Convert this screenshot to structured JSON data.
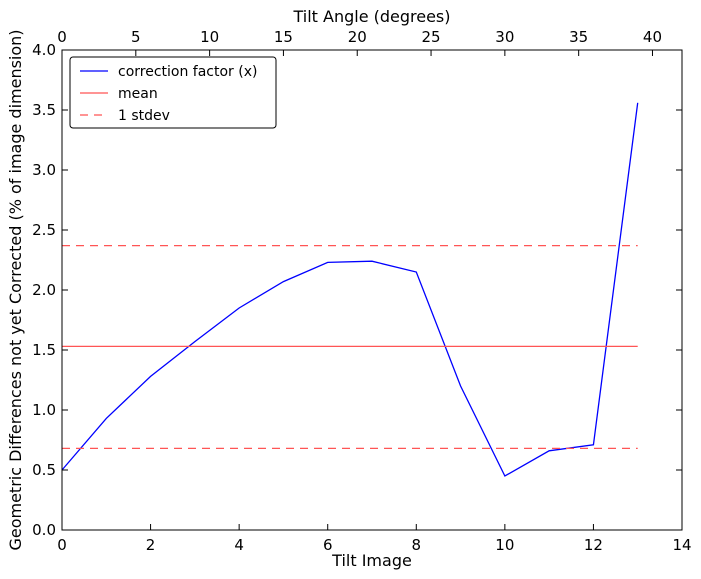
{
  "chart_data": {
    "type": "line",
    "title": "",
    "xlabel": "Tilt Image",
    "ylabel": "Geometric Differences not yet Corrected (% of image dimension)",
    "x2label": "Tilt Angle (degrees)",
    "xlim": [
      0,
      14
    ],
    "ylim": [
      0,
      4.0
    ],
    "x2lim": [
      0,
      42
    ],
    "xticks": [
      0,
      2,
      4,
      6,
      8,
      10,
      12,
      14
    ],
    "yticks": [
      0.0,
      0.5,
      1.0,
      1.5,
      2.0,
      2.5,
      3.0,
      3.5,
      4.0
    ],
    "x2ticks": [
      0,
      5,
      10,
      15,
      20,
      25,
      30,
      35,
      40
    ],
    "xtick_labels": [
      "0",
      "2",
      "4",
      "6",
      "8",
      "10",
      "12",
      "14"
    ],
    "ytick_labels": [
      "0.0",
      "0.5",
      "1.0",
      "1.5",
      "2.0",
      "2.5",
      "3.0",
      "3.5",
      "4.0"
    ],
    "x2tick_labels": [
      "0",
      "5",
      "10",
      "15",
      "20",
      "25",
      "30",
      "35",
      "40"
    ],
    "grid": false,
    "legend_position": "top-left",
    "series": [
      {
        "name": "correction factor (x)",
        "color": "#0000ff",
        "style": "solid",
        "x": [
          0,
          1,
          2,
          3,
          4,
          5,
          6,
          7,
          8,
          9,
          10,
          11,
          12,
          13
        ],
        "y": [
          0.5,
          0.93,
          1.28,
          1.57,
          1.85,
          2.07,
          2.23,
          2.24,
          2.15,
          1.2,
          0.45,
          0.66,
          0.71,
          3.56
        ]
      },
      {
        "name": "mean",
        "color": "#ff5555",
        "style": "solid",
        "x": [
          0,
          13
        ],
        "y": [
          1.53,
          1.53
        ]
      },
      {
        "name": "1 stdev",
        "color": "#ff5555",
        "style": "dashed",
        "x": [
          0,
          13
        ],
        "y": [
          2.37,
          2.37
        ],
        "y_lower": [
          0.68,
          0.68
        ]
      }
    ]
  }
}
